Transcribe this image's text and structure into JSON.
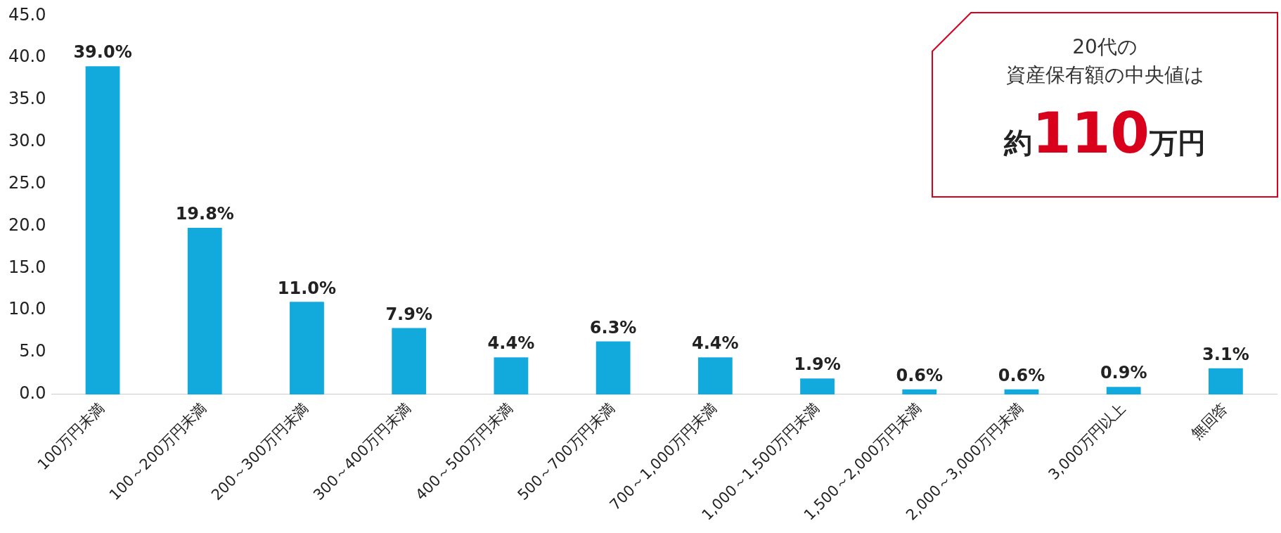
{
  "chart_data": {
    "type": "bar",
    "categories": [
      "100万円未満",
      "100～200万円未満",
      "200～300万円未満",
      "300～400万円未満",
      "400～500万円未満",
      "500～700万円未満",
      "700～1,000万円未満",
      "1,000～1,500万円未満",
      "1,500～2,000万円未満",
      "2,000～3,000万円未満",
      "3,000万円以上",
      "無回答"
    ],
    "values": [
      39.0,
      19.8,
      11.0,
      7.9,
      4.4,
      6.3,
      4.4,
      1.9,
      0.6,
      0.6,
      0.9,
      3.1
    ],
    "value_labels": [
      "39.0%",
      "19.8%",
      "11.0%",
      "7.9%",
      "4.4%",
      "6.3%",
      "4.4%",
      "1.9%",
      "0.6%",
      "0.6%",
      "0.9%",
      "3.1%"
    ],
    "color": "#12a9dc",
    "ylim": [
      0,
      45
    ],
    "yticks": [
      {
        "value": 0,
        "label": "0.0"
      },
      {
        "value": 5,
        "label": "5.0"
      },
      {
        "value": 10,
        "label": "10.0"
      },
      {
        "value": 15,
        "label": "15.0"
      },
      {
        "value": 20,
        "label": "20.0"
      },
      {
        "value": 25,
        "label": "25.0"
      },
      {
        "value": 30,
        "label": "30.0"
      },
      {
        "value": 35,
        "label": "35.0"
      },
      {
        "value": 40,
        "label": "40.0"
      },
      {
        "value": 45,
        "label": "45.0"
      }
    ],
    "grid": false,
    "legend": false,
    "annotations": [
      "20代の",
      "資産保有額の中央値は",
      "約110万円"
    ]
  }
}
